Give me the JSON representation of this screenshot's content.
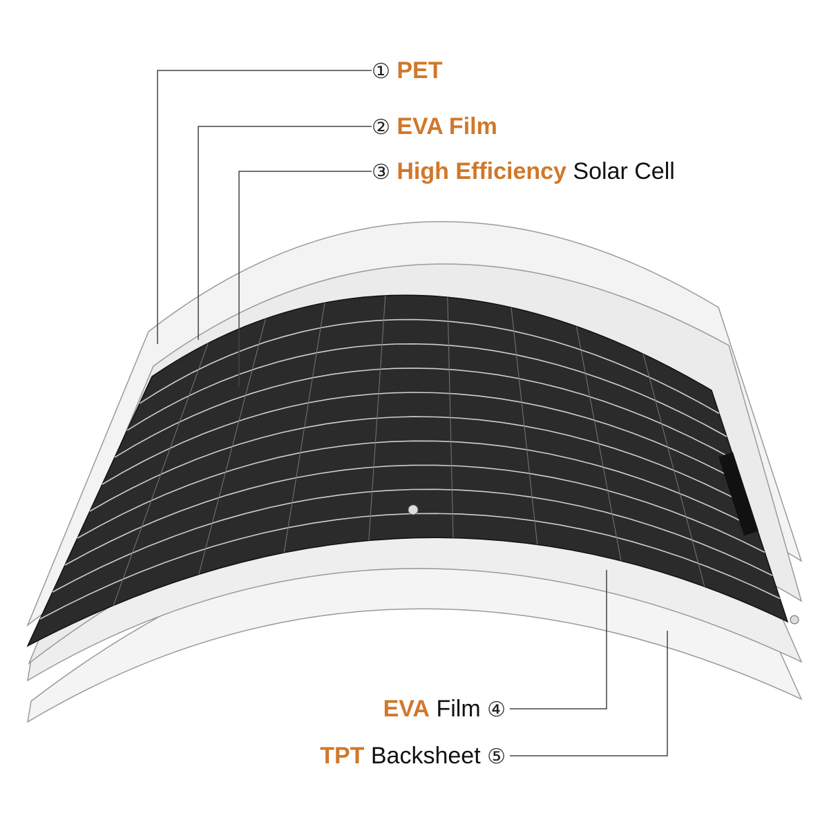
{
  "colors": {
    "accent": "#d0782a",
    "cell": "#2b2b2b",
    "sheet": "#f2f2f2",
    "outline": "#9a9a9a",
    "leader": "#444444"
  },
  "labels": [
    {
      "num": "①",
      "accent": "PET",
      "rest": ""
    },
    {
      "num": "②",
      "accent": "EVA Film",
      "rest": ""
    },
    {
      "num": "③",
      "accent": "High Efficiency",
      "rest": "Solar Cell"
    },
    {
      "num": "④",
      "accent": "EVA",
      "rest": "Film"
    },
    {
      "num": "⑤",
      "accent": "TPT",
      "rest": "Backsheet"
    }
  ]
}
